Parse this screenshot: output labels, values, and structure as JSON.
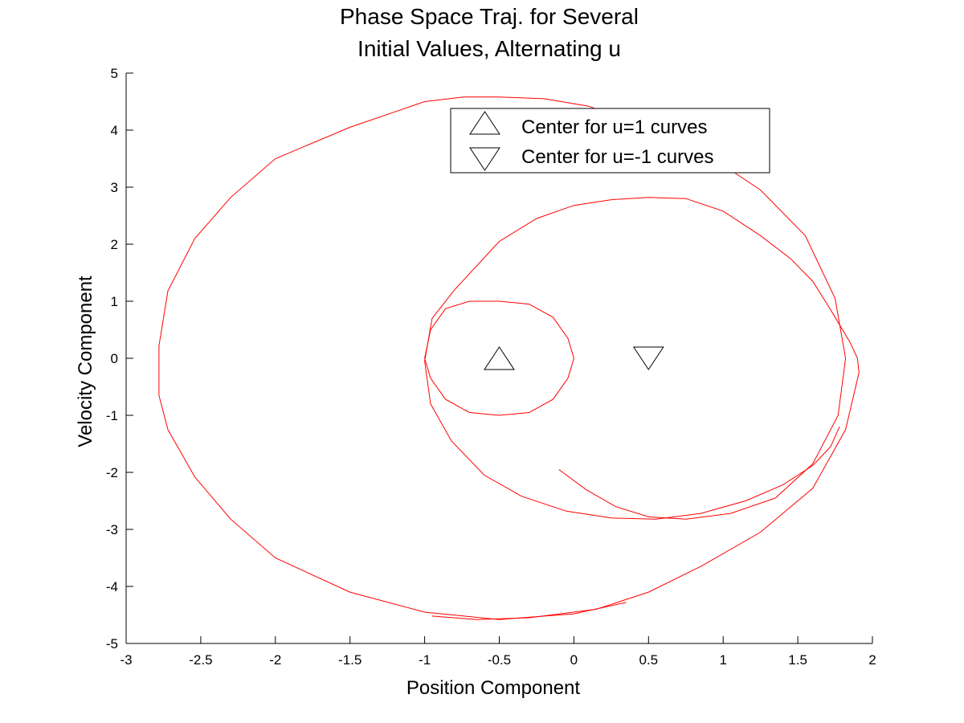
{
  "chart_data": {
    "type": "line",
    "title": [
      "Phase Space Traj. for Several",
      "Initial Values, Alternating u"
    ],
    "xlabel": "Position Component",
    "ylabel": "Velocity Component",
    "xlim": [
      -3,
      2
    ],
    "ylim": [
      -5,
      5
    ],
    "xticks": [
      -3,
      -2.5,
      -2,
      -1.5,
      -1,
      -0.5,
      0,
      0.5,
      1,
      1.5,
      2
    ],
    "xtick_labels": [
      "-3",
      "-2.5",
      "-2",
      "-1.5",
      "-1",
      "-0.5",
      "0",
      "0.5",
      "1",
      "1.5",
      "2"
    ],
    "yticks": [
      -5,
      -4,
      -3,
      -2,
      -1,
      0,
      1,
      2,
      3,
      4,
      5
    ],
    "ytick_labels": [
      "-5",
      "-4",
      "-3",
      "-2",
      "-1",
      "0",
      "1",
      "2",
      "3",
      "4",
      "5"
    ],
    "grid": false,
    "legend": {
      "position": "top-right",
      "entries": [
        {
          "label": "Center for u=1 curves",
          "marker": "triangle-up"
        },
        {
          "label": "Center for u=-1 curves",
          "marker": "triangle-down"
        }
      ]
    },
    "trajectory_color": "#ff0000",
    "marker_color": "#000000",
    "series": [
      {
        "x": [
          -0.5,
          -0.2,
          0.1,
          0.45,
          0.85,
          1.25,
          1.55,
          1.75,
          1.82,
          1.77,
          1.6,
          1.35,
          1.05,
          0.75,
          0.5,
          0.28,
          0.08,
          -0.1
        ],
        "y": [
          4.58,
          4.55,
          4.42,
          4.08,
          3.65,
          2.95,
          2.15,
          1.05,
          0.0,
          -1.0,
          -1.85,
          -2.45,
          -2.72,
          -2.82,
          -2.78,
          -2.6,
          -2.3,
          -1.95
        ]
      },
      {
        "x": [
          -0.5,
          -0.74,
          -1.0,
          -1.5,
          -2.0,
          -2.3,
          -2.54,
          -2.72,
          -2.78,
          -2.78,
          -2.72,
          -2.54,
          -2.3,
          -2.0,
          -1.5,
          -1.0,
          -0.5,
          0.0,
          0.35
        ],
        "y": [
          4.58,
          4.58,
          4.5,
          4.05,
          3.5,
          2.82,
          2.1,
          1.18,
          0.22,
          -0.65,
          -1.25,
          -2.08,
          -2.82,
          -3.5,
          -4.1,
          -4.45,
          -4.58,
          -4.48,
          -4.28
        ]
      },
      {
        "x": [
          -1.0,
          -0.95,
          -0.8,
          -0.5,
          -0.25,
          0.0,
          0.25,
          0.5,
          0.75,
          1.0,
          1.25,
          1.45,
          1.6,
          1.72,
          1.85,
          1.9,
          1.91,
          1.82,
          1.6,
          1.25,
          0.85,
          0.5,
          0.15,
          -0.3,
          -0.65,
          -0.95
        ],
        "y": [
          -0.05,
          0.7,
          1.2,
          2.05,
          2.45,
          2.68,
          2.78,
          2.82,
          2.8,
          2.58,
          2.15,
          1.75,
          1.35,
          0.85,
          0.28,
          0.0,
          -0.25,
          -1.25,
          -2.28,
          -3.05,
          -3.65,
          -4.1,
          -4.4,
          -4.55,
          -4.58,
          -4.52
        ]
      },
      {
        "x": [
          -1.0,
          -0.96,
          -0.86,
          -0.7,
          -0.5,
          -0.3,
          -0.14,
          -0.04,
          0.0,
          -0.04,
          -0.14,
          -0.3,
          -0.5,
          -0.7,
          -0.86,
          -0.96,
          -1.0
        ],
        "y": [
          0.0,
          0.5,
          0.87,
          1.0,
          1.0,
          0.95,
          0.72,
          0.35,
          0.0,
          -0.35,
          -0.72,
          -0.95,
          -1.0,
          -0.95,
          -0.72,
          -0.35,
          0.0
        ]
      },
      {
        "x": [
          -1.0,
          -0.96,
          -0.82,
          -0.6,
          -0.35,
          -0.05,
          0.25,
          0.55,
          0.85,
          1.15,
          1.4,
          1.6,
          1.72,
          1.78
        ],
        "y": [
          -0.05,
          -0.8,
          -1.45,
          -2.05,
          -2.42,
          -2.68,
          -2.8,
          -2.82,
          -2.72,
          -2.5,
          -2.22,
          -1.88,
          -1.55,
          -1.2
        ]
      }
    ],
    "markers": [
      {
        "x": -0.5,
        "y": 0.0,
        "shape": "triangle-up"
      },
      {
        "x": 0.5,
        "y": 0.0,
        "shape": "triangle-down"
      }
    ]
  }
}
